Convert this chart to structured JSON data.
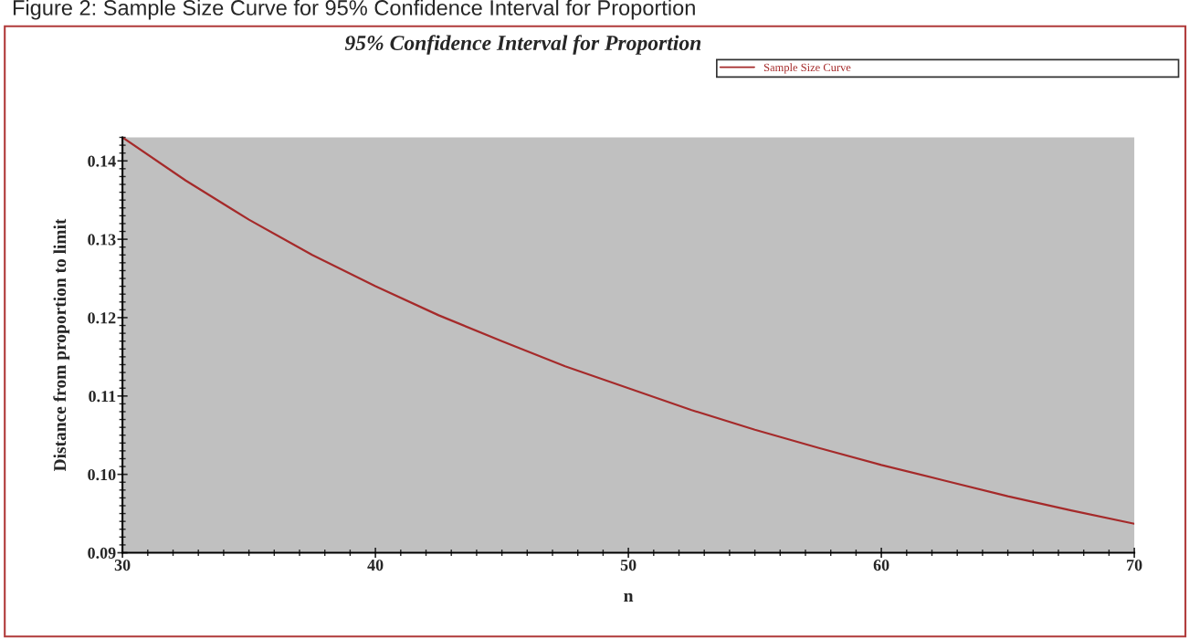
{
  "chart_data": {
    "type": "line",
    "title": "Figure 2: Sample Size Curve for 95% Confidence Interval for Proportion",
    "subtitle": "95% Confidence Interval for Proportion",
    "xlabel": "n",
    "ylabel": "Distance from proportion to limit",
    "x": [
      30,
      32.5,
      35,
      37.5,
      40,
      42.5,
      45,
      47.5,
      50,
      52.5,
      55,
      57.5,
      60,
      62.5,
      65,
      67.5,
      70
    ],
    "series": [
      {
        "name": "Sample Size Curve",
        "color": "#a52a2a",
        "values": [
          0.143,
          0.1375,
          0.1325,
          0.128,
          0.124,
          0.1203,
          0.117,
          0.1138,
          0.111,
          0.1082,
          0.1057,
          0.1034,
          0.1012,
          0.0992,
          0.0972,
          0.0954,
          0.0937
        ]
      }
    ],
    "xlim": [
      30,
      70
    ],
    "ylim": [
      0.09,
      0.143
    ],
    "xticks": [
      30,
      40,
      50,
      60,
      70
    ],
    "yticks": [
      {
        "value": 0.09,
        "label": "0.09"
      },
      {
        "value": 0.1,
        "label": "0.10"
      },
      {
        "value": 0.11,
        "label": "0.11"
      },
      {
        "value": 0.12,
        "label": "0.12"
      },
      {
        "value": 0.13,
        "label": "0.13"
      },
      {
        "value": 0.14,
        "label": "0.14"
      }
    ],
    "grid": false,
    "legend": "top right",
    "marker": "none",
    "line_style": "solid"
  }
}
